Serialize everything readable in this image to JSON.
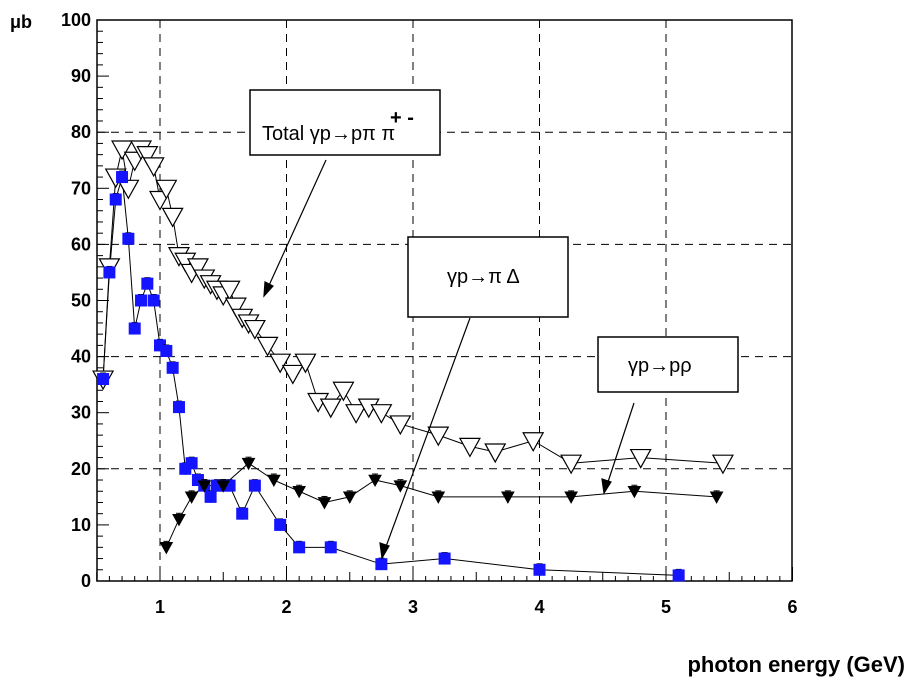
{
  "chart_data": {
    "type": "scatter",
    "xlabel": "photon energy (GeV)",
    "ylabel": "μb",
    "xlim": [
      0.5,
      6.0
    ],
    "ylim": [
      0,
      100
    ],
    "x_ticks": [
      "1",
      "2",
      "3",
      "4",
      "5",
      "6"
    ],
    "y_ticks": [
      "0",
      "10",
      "20",
      "30",
      "40",
      "50",
      "60",
      "70",
      "80",
      "90",
      "100"
    ],
    "grid": "dashed",
    "annotations": [
      {
        "id": "total",
        "text": "Total γp→pπ⁺π⁻",
        "prefix": "Total γp",
        "arrow_sym": "→",
        "rest": "pπ",
        "sup": "+ -",
        "tail": " π"
      },
      {
        "id": "delta",
        "text": "γp→π Δ",
        "prefix": "γp",
        "arrow_sym": "→",
        "rest": "π Δ"
      },
      {
        "id": "rho",
        "text": "γp→pρ",
        "prefix": "γp",
        "arrow_sym": "→",
        "rest": "pρ"
      }
    ],
    "series": [
      {
        "name": "Total γp→pπ⁺π⁻",
        "marker": "open-triangle-down",
        "color": "#000000",
        "points": [
          {
            "x": 0.55,
            "y": 36
          },
          {
            "x": 0.6,
            "y": 56
          },
          {
            "x": 0.65,
            "y": 72
          },
          {
            "x": 0.7,
            "y": 77
          },
          {
            "x": 0.75,
            "y": 70
          },
          {
            "x": 0.8,
            "y": 75
          },
          {
            "x": 0.85,
            "y": 77
          },
          {
            "x": 0.9,
            "y": 76
          },
          {
            "x": 0.95,
            "y": 74
          },
          {
            "x": 1.0,
            "y": 68
          },
          {
            "x": 1.05,
            "y": 70
          },
          {
            "x": 1.1,
            "y": 65
          },
          {
            "x": 1.15,
            "y": 58
          },
          {
            "x": 1.2,
            "y": 57
          },
          {
            "x": 1.25,
            "y": 55
          },
          {
            "x": 1.3,
            "y": 56
          },
          {
            "x": 1.35,
            "y": 54
          },
          {
            "x": 1.4,
            "y": 53
          },
          {
            "x": 1.45,
            "y": 52
          },
          {
            "x": 1.5,
            "y": 51
          },
          {
            "x": 1.55,
            "y": 52
          },
          {
            "x": 1.6,
            "y": 49
          },
          {
            "x": 1.65,
            "y": 47
          },
          {
            "x": 1.7,
            "y": 46
          },
          {
            "x": 1.75,
            "y": 45
          },
          {
            "x": 1.85,
            "y": 42
          },
          {
            "x": 1.95,
            "y": 39
          },
          {
            "x": 2.05,
            "y": 37
          },
          {
            "x": 2.15,
            "y": 39
          },
          {
            "x": 2.25,
            "y": 32
          },
          {
            "x": 2.35,
            "y": 31
          },
          {
            "x": 2.45,
            "y": 34
          },
          {
            "x": 2.55,
            "y": 30
          },
          {
            "x": 2.65,
            "y": 31
          },
          {
            "x": 2.75,
            "y": 30
          },
          {
            "x": 2.9,
            "y": 28
          },
          {
            "x": 3.2,
            "y": 26
          },
          {
            "x": 3.45,
            "y": 24
          },
          {
            "x": 3.65,
            "y": 23
          },
          {
            "x": 3.95,
            "y": 25
          },
          {
            "x": 4.25,
            "y": 21
          },
          {
            "x": 4.8,
            "y": 22
          },
          {
            "x": 5.45,
            "y": 21
          }
        ]
      },
      {
        "name": "γp→π Δ",
        "marker": "filled-square",
        "color": "#1414ff",
        "points": [
          {
            "x": 0.55,
            "y": 36
          },
          {
            "x": 0.6,
            "y": 55
          },
          {
            "x": 0.65,
            "y": 68
          },
          {
            "x": 0.7,
            "y": 72
          },
          {
            "x": 0.75,
            "y": 61
          },
          {
            "x": 0.8,
            "y": 45
          },
          {
            "x": 0.85,
            "y": 50
          },
          {
            "x": 0.9,
            "y": 53
          },
          {
            "x": 0.95,
            "y": 50
          },
          {
            "x": 1.0,
            "y": 42
          },
          {
            "x": 1.05,
            "y": 41
          },
          {
            "x": 1.1,
            "y": 38
          },
          {
            "x": 1.15,
            "y": 31
          },
          {
            "x": 1.2,
            "y": 20
          },
          {
            "x": 1.25,
            "y": 21
          },
          {
            "x": 1.3,
            "y": 18
          },
          {
            "x": 1.35,
            "y": 17
          },
          {
            "x": 1.4,
            "y": 15
          },
          {
            "x": 1.45,
            "y": 17
          },
          {
            "x": 1.5,
            "y": 17
          },
          {
            "x": 1.55,
            "y": 17
          },
          {
            "x": 1.65,
            "y": 12
          },
          {
            "x": 1.75,
            "y": 17
          },
          {
            "x": 1.95,
            "y": 10
          },
          {
            "x": 2.1,
            "y": 6
          },
          {
            "x": 2.35,
            "y": 6
          },
          {
            "x": 2.75,
            "y": 3
          },
          {
            "x": 3.25,
            "y": 4
          },
          {
            "x": 4.0,
            "y": 2
          },
          {
            "x": 5.1,
            "y": 1
          }
        ]
      },
      {
        "name": "γp→pρ",
        "marker": "filled-triangle-down",
        "color": "#000000",
        "points": [
          {
            "x": 1.05,
            "y": 6
          },
          {
            "x": 1.15,
            "y": 11
          },
          {
            "x": 1.25,
            "y": 15
          },
          {
            "x": 1.35,
            "y": 17
          },
          {
            "x": 1.5,
            "y": 17
          },
          {
            "x": 1.7,
            "y": 21
          },
          {
            "x": 1.9,
            "y": 18
          },
          {
            "x": 2.1,
            "y": 16
          },
          {
            "x": 2.3,
            "y": 14
          },
          {
            "x": 2.5,
            "y": 15
          },
          {
            "x": 2.7,
            "y": 18
          },
          {
            "x": 2.9,
            "y": 17
          },
          {
            "x": 3.2,
            "y": 15
          },
          {
            "x": 3.75,
            "y": 15
          },
          {
            "x": 4.25,
            "y": 15
          },
          {
            "x": 4.75,
            "y": 16
          },
          {
            "x": 5.4,
            "y": 15
          }
        ]
      }
    ]
  }
}
